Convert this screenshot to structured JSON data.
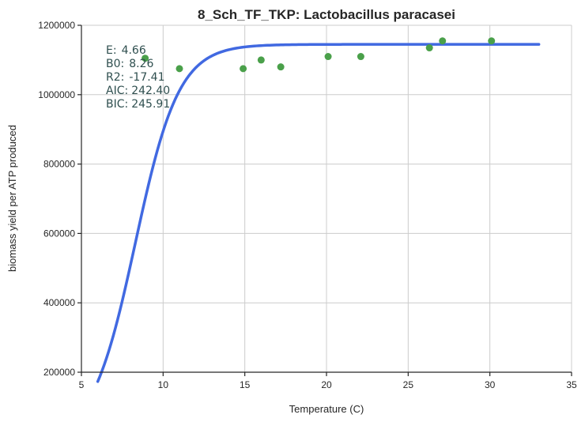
{
  "chart_data": {
    "type": "scatter",
    "title": "8_Sch_TF_TKP: Lactobacillus paracasei",
    "xlabel": "Temperature (C)",
    "ylabel": "biomass yield per ATP produced",
    "xlim": [
      5,
      35
    ],
    "ylim": [
      200000,
      1200000
    ],
    "x_ticks": [
      5,
      10,
      15,
      20,
      25,
      30,
      35
    ],
    "y_ticks": [
      200000,
      400000,
      600000,
      800000,
      1000000,
      1200000
    ],
    "x_tick_labels": [
      "5",
      "10",
      "15",
      "20",
      "25",
      "30",
      "35"
    ],
    "y_tick_labels": [
      "200000",
      "400000",
      "600000",
      "800000",
      "1000000",
      "1200000"
    ],
    "grid": true,
    "colors": {
      "points": "#4aa04a",
      "fit": "#4169e1"
    },
    "points": {
      "x": [
        8.9,
        11.0,
        14.9,
        16.0,
        17.2,
        20.1,
        22.1,
        26.3,
        27.1,
        30.1
      ],
      "y": [
        1105000,
        1075000,
        1075000,
        1100000,
        1080000,
        1110000,
        1110000,
        1135000,
        1155000,
        1155000
      ]
    },
    "fit_curve": {
      "x_range": [
        6,
        33
      ],
      "asymptote": 1145000,
      "x_mid": 8.3,
      "steepness": 0.75,
      "baseline": 0
    },
    "stats": [
      {
        "label": "E:",
        "value": "4.66"
      },
      {
        "label": "B0:",
        "value": "8.26"
      },
      {
        "label": "R2:",
        "value": "-17.41"
      },
      {
        "label": "AIC:",
        "value": "242.40"
      },
      {
        "label": "BIC:",
        "value": "245.91"
      }
    ]
  }
}
